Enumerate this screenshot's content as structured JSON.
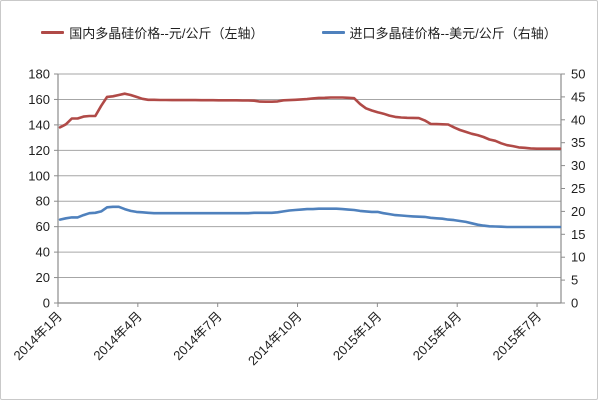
{
  "chart": {
    "background": "#ffffff",
    "border_color": "#c9c9c9",
    "grid_color": "#a6a6a6",
    "axis_color": "#8c8c8c",
    "text_color": "#1f1f1f"
  },
  "legend": {
    "items": [
      {
        "label": "国内多晶硅价格--元/公斤（左轴）",
        "color": "#b04a47"
      },
      {
        "label": "进口多晶硅价格--美元/公斤（右轴）",
        "color": "#4f81bd"
      }
    ]
  },
  "chart_data": {
    "type": "line",
    "title": "",
    "legend_position": "top",
    "grid": true,
    "x_tick_labels": [
      "2014年1月",
      "2014年4月",
      "2014年7月",
      "2014年10月",
      "2015年1月",
      "2015年4月",
      "2015年7月"
    ],
    "x_tick_month_offsets": [
      0,
      3,
      6,
      9,
      12,
      15,
      18
    ],
    "x_total_months": 18.9,
    "left_axis": {
      "min": 0,
      "max": 180,
      "step": 20,
      "ticks": [
        0,
        20,
        40,
        60,
        80,
        100,
        120,
        140,
        160,
        180
      ]
    },
    "right_axis": {
      "min": 0,
      "max": 50,
      "step": 5,
      "ticks": [
        0,
        5,
        10,
        15,
        20,
        25,
        30,
        35,
        40,
        45,
        50
      ]
    },
    "series": [
      {
        "name": "国内多晶硅价格--元/公斤（左轴）",
        "axis": "left",
        "unit": "元/公斤",
        "color": "#b04a47",
        "values": [
          138,
          140.5,
          145,
          145,
          146.5,
          147,
          147,
          155,
          162,
          162.5,
          163.5,
          164.5,
          163.5,
          162,
          160.5,
          159.7,
          159.7,
          159.6,
          159.6,
          159.5,
          159.5,
          159.5,
          159.5,
          159.5,
          159.4,
          159.4,
          159.4,
          159.3,
          159.3,
          159.3,
          159.3,
          159.2,
          159.2,
          159,
          158.3,
          158.2,
          158.2,
          158.5,
          159.3,
          159.5,
          159.7,
          160,
          160.3,
          160.8,
          161.2,
          161.3,
          161.5,
          161.5,
          161.5,
          161.3,
          161,
          156.5,
          153,
          151.3,
          150,
          148.8,
          147.3,
          146.3,
          145.8,
          145.6,
          145.5,
          145.3,
          143.5,
          140.8,
          140.6,
          140.5,
          140.3,
          138,
          136,
          134.5,
          133,
          132,
          130.5,
          128.5,
          127.5,
          125.5,
          124,
          123.3,
          122.3,
          122,
          121.5,
          121.3,
          121.3,
          121.3,
          121.3,
          121.3
        ]
      },
      {
        "name": "进口多晶硅价格--美元/公斤（右轴）",
        "axis": "right",
        "unit": "美元/公斤",
        "color": "#4f81bd",
        "values": [
          18.2,
          18.5,
          18.7,
          18.7,
          19.2,
          19.6,
          19.7,
          20.0,
          20.9,
          21.0,
          21.0,
          20.5,
          20.1,
          19.9,
          19.8,
          19.7,
          19.6,
          19.6,
          19.6,
          19.6,
          19.6,
          19.6,
          19.6,
          19.6,
          19.6,
          19.6,
          19.6,
          19.6,
          19.6,
          19.6,
          19.6,
          19.6,
          19.6,
          19.7,
          19.7,
          19.7,
          19.7,
          19.8,
          20.0,
          20.2,
          20.3,
          20.4,
          20.5,
          20.5,
          20.6,
          20.6,
          20.6,
          20.6,
          20.5,
          20.4,
          20.3,
          20.1,
          20.0,
          19.9,
          19.9,
          19.6,
          19.4,
          19.2,
          19.1,
          19.0,
          18.9,
          18.85,
          18.8,
          18.6,
          18.5,
          18.4,
          18.2,
          18.1,
          17.9,
          17.7,
          17.4,
          17.1,
          16.9,
          16.75,
          16.7,
          16.65,
          16.6,
          16.6,
          16.6,
          16.6,
          16.6,
          16.6,
          16.6,
          16.6,
          16.6,
          16.6
        ]
      }
    ]
  }
}
